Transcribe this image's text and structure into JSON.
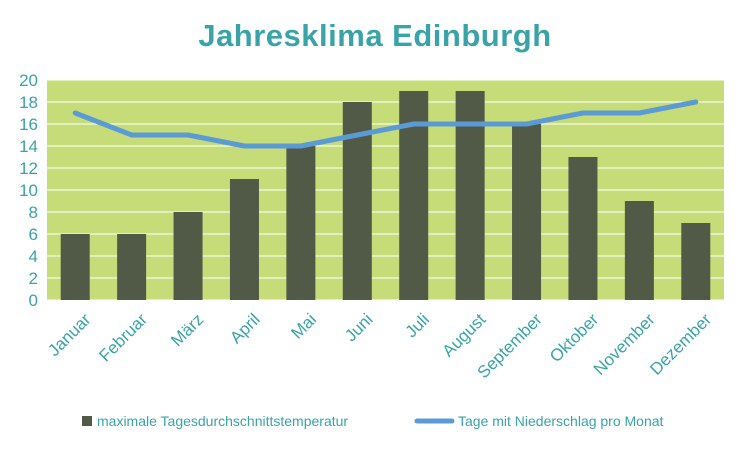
{
  "chart_data": {
    "type": "bar",
    "title": "Jahresklima  Edinburgh",
    "categories": [
      "Januar",
      "Februar",
      "März",
      "April",
      "Mai",
      "Juni",
      "Juli",
      "August",
      "September",
      "Oktober",
      "November",
      "Dezember"
    ],
    "series": [
      {
        "name": "maximale Tagesdurchschnittstemperatur",
        "type": "bar",
        "color": "#505a46",
        "values": [
          6,
          6,
          8,
          11,
          14,
          18,
          19,
          19,
          16,
          13,
          9,
          7
        ]
      },
      {
        "name": "Tage mit Niederschlag pro Monat",
        "type": "line",
        "color": "#5b9bd5",
        "values": [
          17,
          15,
          15,
          14,
          14,
          15,
          16,
          16,
          16,
          17,
          17,
          18
        ]
      }
    ],
    "ylim": [
      0,
      20
    ],
    "yticks": [
      0,
      2,
      4,
      6,
      8,
      10,
      12,
      14,
      16,
      18,
      20
    ],
    "grid": true,
    "legend": "bottom",
    "colors": {
      "plot_background": "#c5dc78",
      "gridline": "#ffffff",
      "text_accent": "#3aa3a8"
    }
  }
}
